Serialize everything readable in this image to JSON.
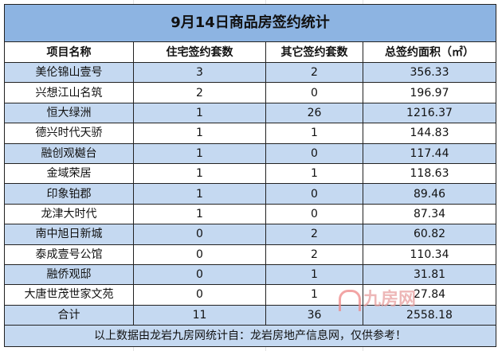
{
  "title": "9月14日商品房签约统计",
  "headers": [
    "项目名称",
    "住宅签约套数",
    "其它签约套数",
    "总签约面积（㎡）"
  ],
  "rows": [
    [
      "美伦锦山壹号",
      "3",
      "2",
      "356.33"
    ],
    [
      "兴想江山名筑",
      "2",
      "0",
      "196.97"
    ],
    [
      "恒大绿洲",
      "1",
      "26",
      "1216.37"
    ],
    [
      "德兴时代天骄",
      "1",
      "1",
      "144.83"
    ],
    [
      "融创观樾台",
      "1",
      "0",
      "117.44"
    ],
    [
      "金域荣居",
      "1",
      "1",
      "118.63"
    ],
    [
      "印象铂郡",
      "1",
      "0",
      "89.46"
    ],
    [
      "龙津大时代",
      "1",
      "0",
      "87.34"
    ],
    [
      "南中旭日新城",
      "0",
      "2",
      "60.82"
    ],
    [
      "泰成壹号公馆",
      "0",
      "2",
      "110.34"
    ],
    [
      "融侨观邸",
      "0",
      "1",
      "31.81"
    ],
    [
      "大唐世茂世家文苑",
      "0",
      "1",
      "27.84"
    ],
    [
      "合计",
      "11",
      "36",
      "2558.18"
    ]
  ],
  "footer": "以上数据由龙岩九房网统计自：龙岩房地产信息网，仅供参考！",
  "watermark": "九房网",
  "colors": {
    "title_bg": "#8db4e2",
    "alt_row_bg": "#c5d9f1"
  }
}
